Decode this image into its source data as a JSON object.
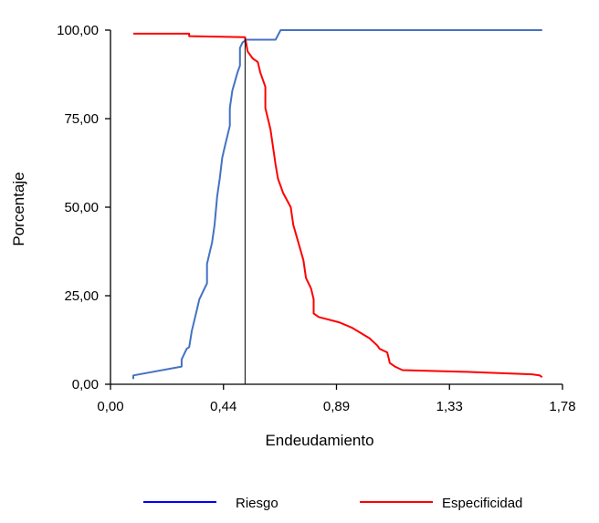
{
  "chart_data": {
    "type": "line",
    "xlabel": "Endeudamiento",
    "ylabel": "Porcentaje",
    "xlim": [
      0,
      1.78
    ],
    "ylim": [
      0,
      100
    ],
    "x_ticks": [
      {
        "value": 0.0,
        "label": "0,00"
      },
      {
        "value": 0.445,
        "label": "0,44"
      },
      {
        "value": 0.89,
        "label": "0,89"
      },
      {
        "value": 1.335,
        "label": "1,33"
      },
      {
        "value": 1.78,
        "label": "1,78"
      }
    ],
    "y_ticks": [
      {
        "value": 0,
        "label": "0,00"
      },
      {
        "value": 25,
        "label": "25,00"
      },
      {
        "value": 50,
        "label": "50,00"
      },
      {
        "value": 75,
        "label": "75,00"
      },
      {
        "value": 100,
        "label": "100,00"
      }
    ],
    "cutoff_x": 0.53,
    "legend_position": "bottom",
    "series": [
      {
        "name": "Riesgo",
        "color": "#4472C4",
        "legend_color": "#0000FF",
        "points": [
          [
            0.09,
            1.5
          ],
          [
            0.09,
            2.5
          ],
          [
            0.28,
            5.0
          ],
          [
            0.28,
            7.0
          ],
          [
            0.3,
            10.0
          ],
          [
            0.31,
            10.5
          ],
          [
            0.32,
            15.0
          ],
          [
            0.34,
            21.0
          ],
          [
            0.35,
            24.0
          ],
          [
            0.37,
            27.0
          ],
          [
            0.38,
            28.5
          ],
          [
            0.38,
            34.0
          ],
          [
            0.4,
            40.0
          ],
          [
            0.41,
            45.0
          ],
          [
            0.42,
            53.0
          ],
          [
            0.43,
            58.0
          ],
          [
            0.44,
            64.0
          ],
          [
            0.45,
            67.0
          ],
          [
            0.47,
            73.0
          ],
          [
            0.47,
            78.0
          ],
          [
            0.48,
            83.0
          ],
          [
            0.49,
            85.5
          ],
          [
            0.5,
            88.0
          ],
          [
            0.51,
            90.0
          ],
          [
            0.51,
            95.0
          ],
          [
            0.52,
            96.5
          ],
          [
            0.53,
            97.0
          ],
          [
            0.53,
            97.3
          ],
          [
            0.65,
            97.3
          ],
          [
            0.67,
            100.0
          ],
          [
            1.7,
            100.0
          ]
        ]
      },
      {
        "name": "Especificidad",
        "color": "#FF0000",
        "legend_color": "#FF0000",
        "points": [
          [
            0.09,
            99.0
          ],
          [
            0.31,
            99.0
          ],
          [
            0.31,
            98.3
          ],
          [
            0.53,
            98.0
          ],
          [
            0.54,
            94.0
          ],
          [
            0.56,
            92.0
          ],
          [
            0.58,
            91.0
          ],
          [
            0.59,
            88.0
          ],
          [
            0.61,
            84.0
          ],
          [
            0.61,
            78.0
          ],
          [
            0.63,
            72.0
          ],
          [
            0.64,
            67.0
          ],
          [
            0.65,
            62.0
          ],
          [
            0.66,
            58.0
          ],
          [
            0.68,
            54.0
          ],
          [
            0.71,
            50.0
          ],
          [
            0.72,
            45.0
          ],
          [
            0.74,
            40.0
          ],
          [
            0.76,
            35.0
          ],
          [
            0.77,
            30.0
          ],
          [
            0.79,
            27.0
          ],
          [
            0.8,
            24.0
          ],
          [
            0.8,
            20.0
          ],
          [
            0.82,
            19.0
          ],
          [
            0.9,
            17.5
          ],
          [
            0.95,
            16.0
          ],
          [
            1.02,
            13.0
          ],
          [
            1.05,
            11.0
          ],
          [
            1.06,
            10.0
          ],
          [
            1.09,
            9.0
          ],
          [
            1.1,
            6.0
          ],
          [
            1.12,
            5.0
          ],
          [
            1.15,
            4.0
          ],
          [
            1.4,
            3.5
          ],
          [
            1.66,
            2.8
          ],
          [
            1.69,
            2.5
          ],
          [
            1.7,
            2.0
          ]
        ]
      }
    ]
  }
}
